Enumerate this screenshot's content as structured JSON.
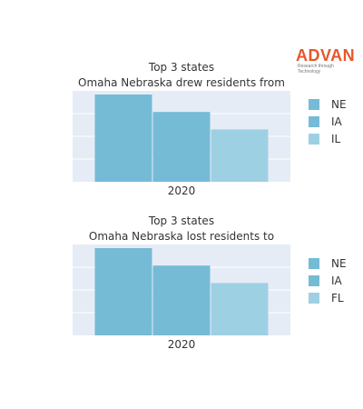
{
  "logo": {
    "name": "ADVAN",
    "tagline": "Research through Technology",
    "color": "#e8572a"
  },
  "chart_data": [
    {
      "type": "bar",
      "title_lines": [
        "Top 3 states",
        "Omaha Nebraska drew residents from"
      ],
      "categories": [
        "2020"
      ],
      "series": [
        {
          "name": "NE",
          "values": [
            100
          ],
          "color": "#75bbd6"
        },
        {
          "name": "IA",
          "values": [
            80
          ],
          "color": "#75bbd6"
        },
        {
          "name": "IL",
          "values": [
            60
          ],
          "color": "#9ed0e3"
        }
      ],
      "ylim": [
        0,
        100
      ],
      "grid": true,
      "legend": "right"
    },
    {
      "type": "bar",
      "title_lines": [
        "Top 3 states",
        "Omaha Nebraska lost residents to"
      ],
      "categories": [
        "2020"
      ],
      "series": [
        {
          "name": "NE",
          "values": [
            100
          ],
          "color": "#75bbd6"
        },
        {
          "name": "IA",
          "values": [
            80
          ],
          "color": "#75bbd6"
        },
        {
          "name": "FL",
          "values": [
            60
          ],
          "color": "#9ed0e3"
        }
      ],
      "ylim": [
        0,
        100
      ],
      "grid": true,
      "legend": "right"
    }
  ]
}
